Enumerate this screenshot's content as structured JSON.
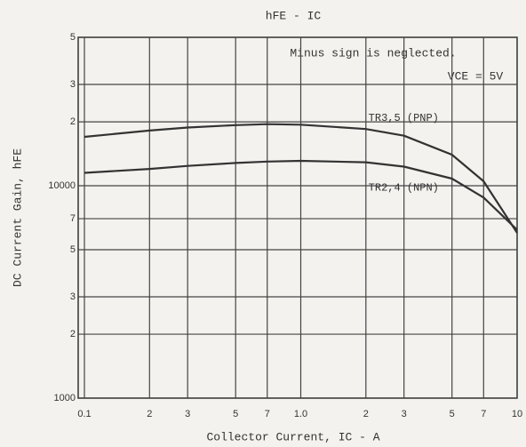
{
  "chart_data": {
    "type": "line",
    "title": "hFE - IC",
    "annotations": [
      "Minus sign is neglected.",
      "VCE = 5V"
    ],
    "x_label": "Collector Current, IC - A",
    "y_label": "DC Current Gain, hFE",
    "xscale": "log",
    "yscale": "log",
    "grid": true,
    "xlim": [
      0.1,
      10
    ],
    "ylim": [
      1000,
      50000
    ],
    "xticks": [
      0.1,
      {
        "value": 0.2,
        "label": "2"
      },
      {
        "value": 0.3,
        "label": "3"
      },
      {
        "value": 0.5,
        "label": "5"
      },
      {
        "value": 0.7,
        "label": "7"
      },
      {
        "value": 1,
        "label": "1.0"
      },
      {
        "value": 2,
        "label": "2"
      },
      {
        "value": 3,
        "label": "3"
      },
      {
        "value": 5,
        "label": "5"
      },
      {
        "value": 7,
        "label": "7"
      },
      10
    ],
    "yticks": [
      1000,
      {
        "value": 2000,
        "label": "2"
      },
      {
        "value": 3000,
        "label": "3"
      },
      {
        "value": 5000,
        "label": "5"
      },
      {
        "value": 7000,
        "label": "7"
      },
      10000,
      {
        "value": 20000,
        "label": "2"
      },
      {
        "value": 30000,
        "label": "3"
      },
      {
        "value": 50000,
        "label": "5"
      }
    ],
    "x": [
      0.1,
      0.2,
      0.3,
      0.5,
      0.7,
      1,
      2,
      3,
      5,
      7,
      10
    ],
    "series": [
      {
        "name": "TR3,5 (PNP)",
        "color": "#333333",
        "values": [
          17000,
          18200,
          18800,
          19300,
          19500,
          19400,
          18500,
          17200,
          14000,
          10500,
          6000
        ]
      },
      {
        "name": "TR2,4 (NPN)",
        "color": "#333333",
        "values": [
          11500,
          12000,
          12400,
          12800,
          13000,
          13100,
          12900,
          12300,
          10800,
          8800,
          6200
        ]
      }
    ]
  }
}
